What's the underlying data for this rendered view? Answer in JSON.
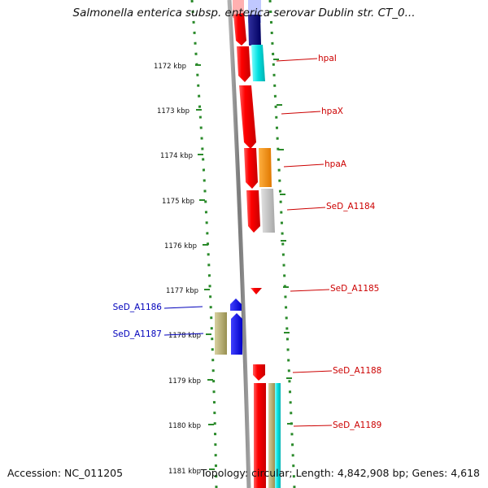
{
  "title": "Salmonella enterica subsp. enterica serovar Dublin str. CT_0...",
  "footer": {
    "accession": "Accession: NC_011205",
    "summary": "Topology: circular; Length: 4,842,908 bp; Genes: 4,618"
  },
  "ticks": [
    "1172 kbp",
    "1173 kbp",
    "1174 kbp",
    "1175 kbp",
    "1176 kbp",
    "1177 kbp",
    "1178 kbp",
    "1179 kbp",
    "1180 kbp",
    "1181 kbp"
  ],
  "gene_labels": [
    {
      "text": "hpaI",
      "strand": "forward"
    },
    {
      "text": "hpaX",
      "strand": "forward"
    },
    {
      "text": "hpaA",
      "strand": "forward"
    },
    {
      "text": "SeD_A1184",
      "strand": "forward"
    },
    {
      "text": "SeD_A1185",
      "strand": "forward"
    },
    {
      "text": "SeD_A1186",
      "strand": "reverse"
    },
    {
      "text": "SeD_A1187",
      "strand": "reverse"
    },
    {
      "text": "SeD_A1188",
      "strand": "forward"
    },
    {
      "text": "SeD_A1189",
      "strand": "forward"
    }
  ],
  "colors": {
    "forward_label": "#cc0000",
    "reverse_label": "#0000bb",
    "backbone": "#888888",
    "dots": "#2a8a2a",
    "red": "#ff0000",
    "navy": "#000080",
    "cyan": "#00e5e5",
    "orange": "#ff8c00",
    "grey": "#c0c0c0",
    "blue": "#0000ff",
    "khaki": "#b8b070",
    "lilac": "#c0c8ff"
  }
}
